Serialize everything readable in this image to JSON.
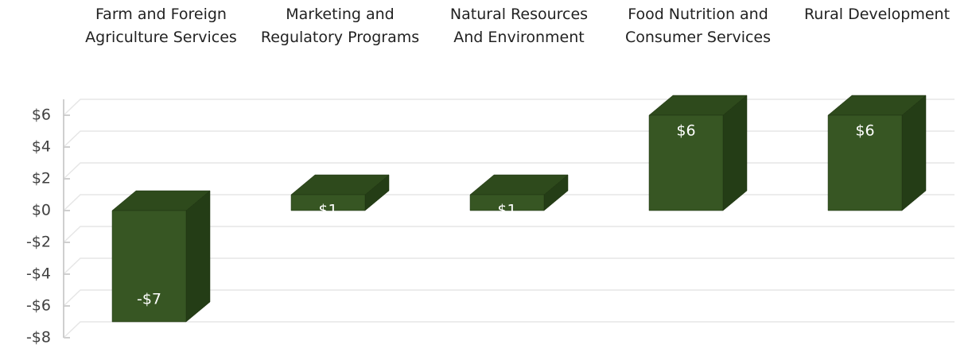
{
  "chart_data": {
    "type": "bar3d",
    "categories": [
      "Farm and Foreign Agriculture Services",
      "Marketing and Regulatory Programs",
      "Natural Resources And Environment",
      "Food Nutrition and Consumer Services",
      "Rural Development"
    ],
    "values": [
      -7,
      1,
      1,
      6,
      6
    ],
    "value_labels": [
      "-$7",
      "$1",
      "$1",
      "$6",
      "$6"
    ],
    "color": "#375623",
    "ylim": [
      -8,
      6
    ],
    "yticks": [
      {
        "value": -8,
        "label": "-$8"
      },
      {
        "value": -6,
        "label": "-$6"
      },
      {
        "value": -4,
        "label": "-$4"
      },
      {
        "value": -2,
        "label": "-$2"
      },
      {
        "value": 0,
        "label": "$0"
      },
      {
        "value": 2,
        "label": "$2"
      },
      {
        "value": 4,
        "label": "$4"
      },
      {
        "value": 6,
        "label": "$6"
      }
    ],
    "grid": true
  }
}
